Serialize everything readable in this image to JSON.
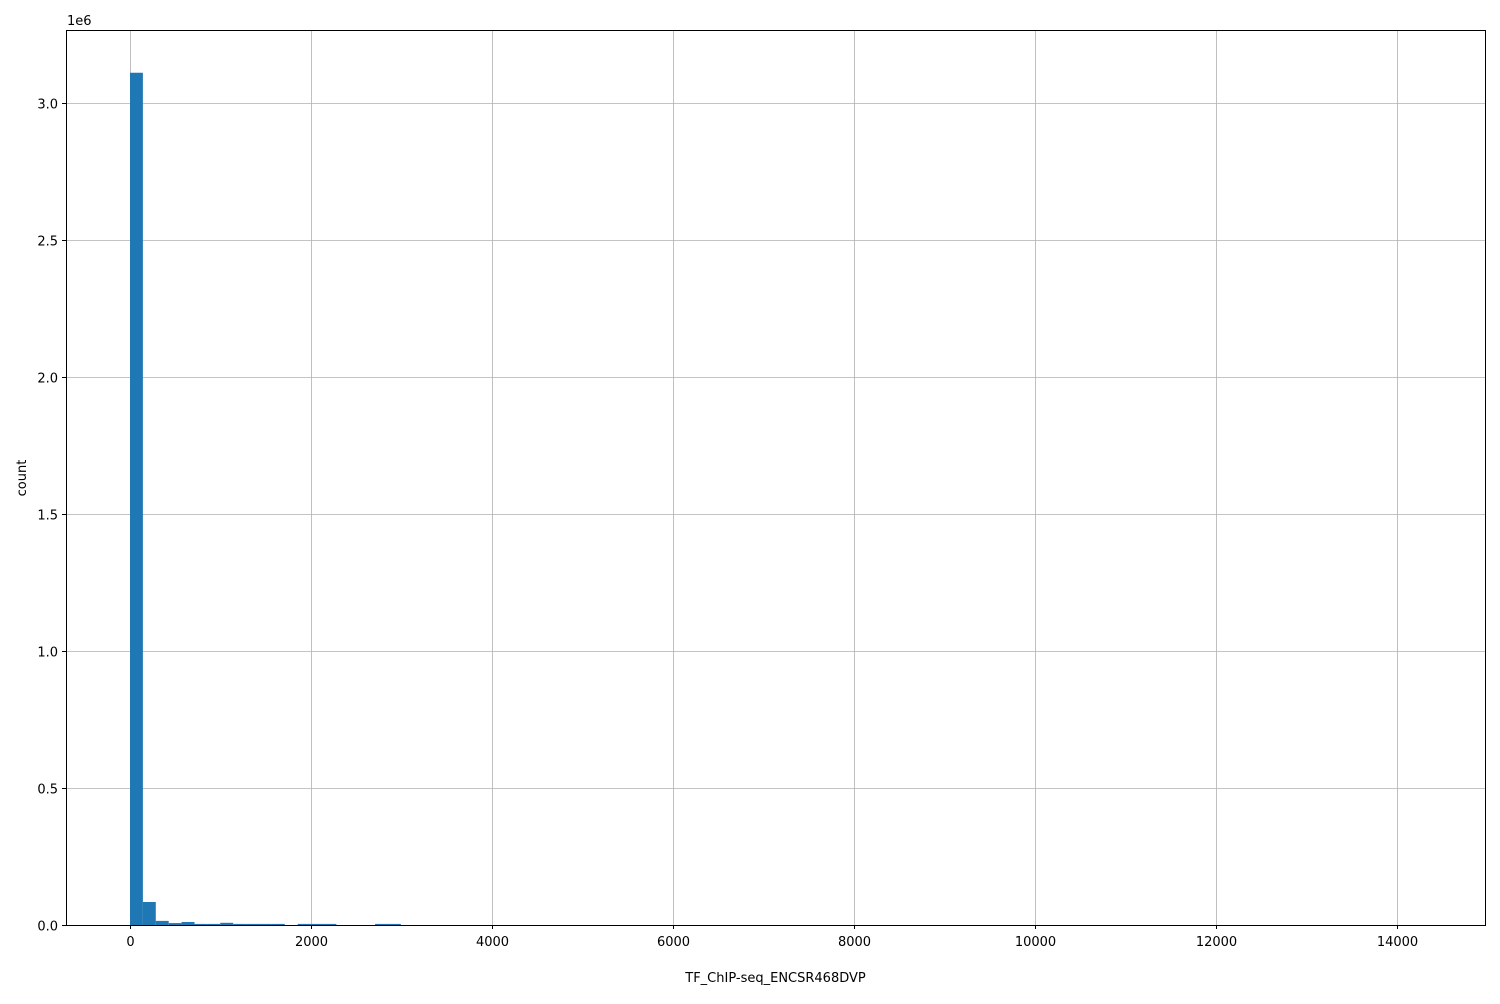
{
  "chart_data": {
    "type": "bar",
    "title": "",
    "xlabel": "TF_ChIP-seq_ENCSR468DVP",
    "ylabel": "count",
    "y_scale_label": "1e6",
    "bin_start": 0,
    "bin_width": 142.5,
    "values": [
      3110000,
      84000,
      15000,
      7000,
      11000,
      4000,
      4000,
      8000,
      4000,
      4000,
      4000,
      4000,
      0,
      4000,
      4000,
      4000,
      0,
      0,
      0,
      4000,
      4000,
      0,
      0,
      0,
      0,
      0,
      0,
      0,
      0,
      0,
      0,
      0,
      0,
      0,
      0,
      0,
      0,
      0,
      0,
      0,
      0,
      0,
      0,
      0,
      0,
      0,
      0,
      0,
      0,
      0,
      0,
      0,
      0,
      0,
      0,
      0,
      0,
      0,
      0,
      0,
      0,
      0,
      0,
      0,
      0,
      0,
      0,
      0,
      0,
      0,
      0,
      0,
      0,
      0,
      0,
      0,
      0,
      0,
      0,
      0,
      0,
      0,
      0,
      0,
      0,
      0,
      0,
      0,
      0,
      0,
      0,
      0,
      0,
      0,
      0,
      0,
      0,
      0,
      0,
      0,
      0,
      0,
      0,
      0
    ],
    "xlim": [
      -707,
      14970
    ],
    "ylim": [
      0,
      3266000
    ],
    "xticks": [
      0,
      2000,
      4000,
      6000,
      8000,
      10000,
      12000,
      14000
    ],
    "xtick_labels": [
      "0",
      "2000",
      "4000",
      "6000",
      "8000",
      "10000",
      "12000",
      "14000"
    ],
    "yticks": [
      0,
      500000,
      1000000,
      1500000,
      2000000,
      2500000,
      3000000
    ],
    "ytick_labels": [
      "0.0",
      "0.5",
      "1.0",
      "1.5",
      "2.0",
      "2.5",
      "3.0"
    ],
    "grid": true,
    "bar_color": "#1f77b4",
    "grid_color": "#b0b0b0"
  }
}
